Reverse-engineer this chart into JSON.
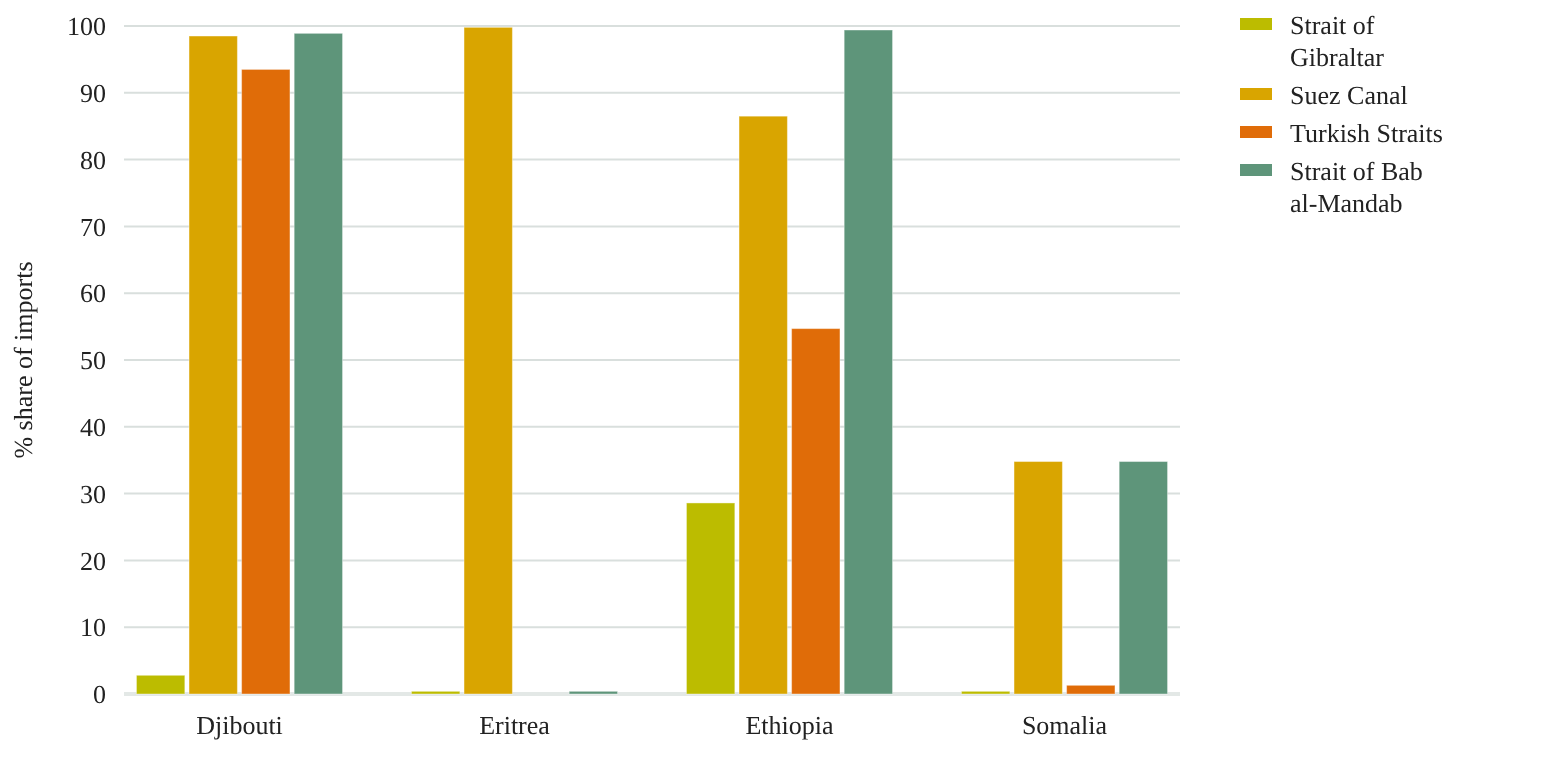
{
  "chart_data": {
    "type": "bar",
    "ylabel": "% share of imports",
    "categories": [
      "Djibouti",
      "Eritrea",
      "Ethiopia",
      "Somalia"
    ],
    "series": [
      {
        "name": "Strait of Gibraltar",
        "color": "#bcbc00",
        "values": [
          2.8,
          0.4,
          28.6,
          0.4
        ]
      },
      {
        "name": "Suez Canal",
        "color": "#d9a500",
        "values": [
          98.5,
          99.8,
          86.5,
          34.8
        ]
      },
      {
        "name": "Turkish Straits",
        "color": "#e06c08",
        "values": [
          93.5,
          0,
          54.7,
          1.3
        ]
      },
      {
        "name": "Strait of Bab al-Mandab",
        "color": "#5e957a",
        "values": [
          98.9,
          0.4,
          99.4,
          34.8
        ]
      }
    ],
    "ylim": [
      0,
      100
    ],
    "yticks": [
      0,
      10,
      20,
      30,
      40,
      50,
      60,
      70,
      80,
      90,
      100
    ],
    "grid": "y",
    "legend": "top right"
  }
}
